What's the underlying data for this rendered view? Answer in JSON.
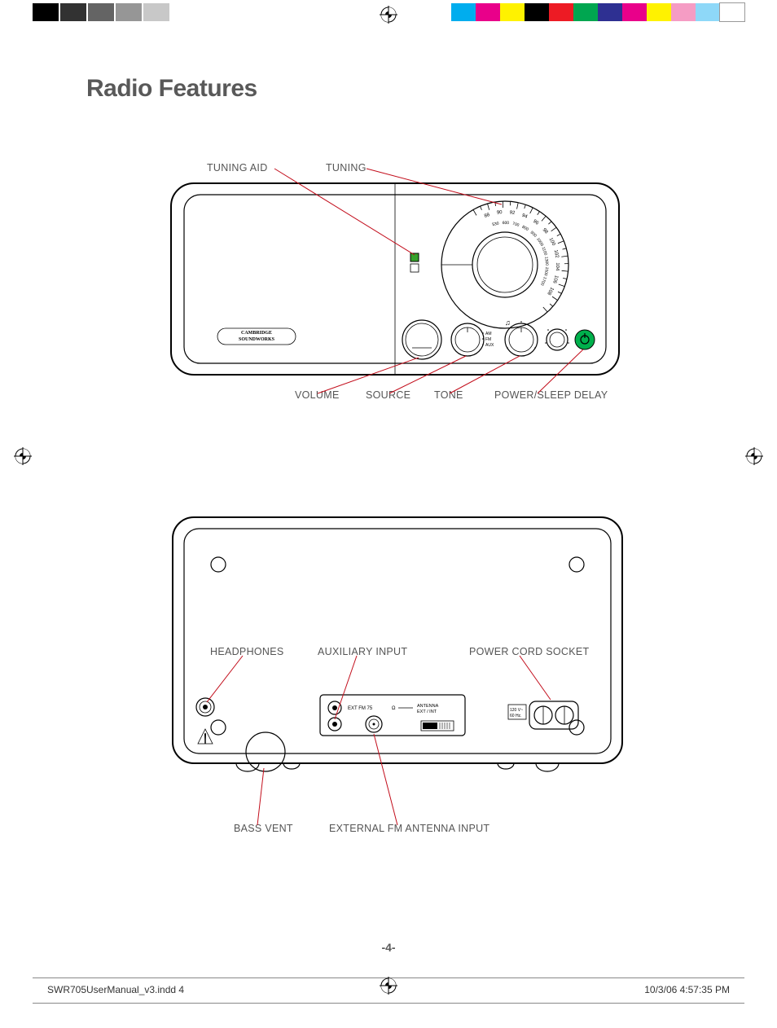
{
  "title": "Radio Features",
  "front": {
    "labels": {
      "tuning_aid": "TUNING AID",
      "tuning": "TUNING",
      "volume": "VOLUME",
      "source": "SOURCE",
      "tone": "TONE",
      "power": "POWER/SLEEP DELAY"
    },
    "brand_line1": "CAMBRIDGE",
    "brand_line2": "SOUNDWORKS",
    "source_options": {
      "am": "AM",
      "fm": "FM",
      "aux": "AUX"
    },
    "dial": {
      "fm": [
        "88",
        "90",
        "92",
        "94",
        "96",
        "98",
        "100",
        "102",
        "104",
        "106",
        "108"
      ],
      "am": [
        "530",
        "600",
        "700",
        "800",
        "900",
        "1000",
        "1100",
        "1300",
        "1500",
        "1700"
      ],
      "fm_start_deg": -110,
      "am_start_deg": -103,
      "step_deg": 14
    },
    "label_color": "#555555",
    "leader_color": "#c20c1a",
    "tuning_aid_led_color": "#37a22c",
    "power_button_color": "#00b04c"
  },
  "back": {
    "labels": {
      "headphones": "HEADPHONES",
      "aux_input": "AUXILIARY INPUT",
      "power_socket": "POWER CORD SOCKET",
      "bass_vent": "BASS VENT",
      "ext_fm": "EXTERNAL FM ANTENNA INPUT"
    },
    "panel_text": {
      "ext_fm_ohm": "EXT  FM  75",
      "ohm": "Ω",
      "antenna1": "ANTENNA",
      "antenna2": "EXT / INT",
      "power_spec1": "120 V~",
      "power_spec2": "60 Hz."
    },
    "label_color": "#555555",
    "leader_color": "#c20c1a"
  },
  "page_number": "-4-",
  "footer": {
    "filename": "SWR705UserManual_v3.indd   4",
    "timestamp": "10/3/06   4:57:35 PM"
  },
  "colorbar": {
    "left_grays": [
      "#000000",
      "#323232",
      "#646464",
      "#969696",
      "#c8c8c8"
    ],
    "right_colors": [
      "#00adee",
      "#e9008a",
      "#fff200",
      "#000000",
      "#ed1b24",
      "#00a650",
      "#2e3092",
      "#e9008a",
      "#fff200",
      "#f59cc4",
      "#8ed8f8",
      "#ffffff"
    ]
  },
  "style": {
    "title_color": "#595959",
    "title_fontsize_pt": 21,
    "label_fontsize_pt": 9.5,
    "page_bg": "#ffffff"
  }
}
